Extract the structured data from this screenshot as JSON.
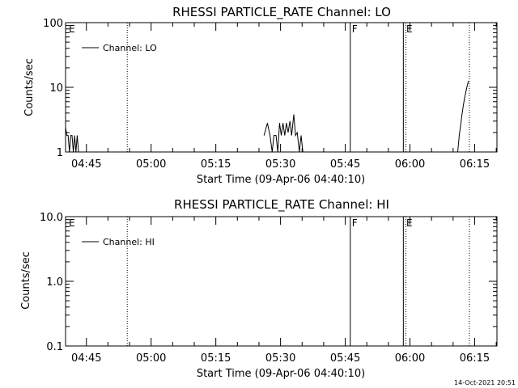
{
  "footer": {
    "timestamp": "14-Oct-2021 20:51"
  },
  "chart_data": [
    {
      "type": "line",
      "title": "RHESSI PARTICLE_RATE Channel: LO",
      "xlabel": "Start Time (09-Apr-06 04:40:10)",
      "ylabel": "Counts/sec",
      "yscale": "log",
      "ylim": [
        1,
        100
      ],
      "xlim_minutes": [
        0,
        100
      ],
      "ytick_labels": [
        "1",
        "10",
        "100"
      ],
      "ytick_values": [
        1,
        10,
        100
      ],
      "xtick_labels": [
        "04:45",
        "05:00",
        "05:15",
        "05:30",
        "05:45",
        "06:00",
        "06:15"
      ],
      "xtick_minutes": [
        4.833,
        19.833,
        34.833,
        49.833,
        64.833,
        79.833,
        94.833
      ],
      "grid": false,
      "legend": {
        "position": "top-left",
        "entries": [
          "Channel: LO"
        ]
      },
      "annotations": [
        {
          "text": "E",
          "x_minutes": 0.4
        },
        {
          "text": "F",
          "x_minutes": 66.0
        },
        {
          "text": "E",
          "x_minutes": 78.6
        }
      ],
      "vertical_lines": [
        {
          "x_minutes": 14.3,
          "style": "dotted"
        },
        {
          "x_minutes": 66.0,
          "style": "solid"
        },
        {
          "x_minutes": 78.3,
          "style": "solid"
        },
        {
          "x_minutes": 78.9,
          "style": "dotted"
        },
        {
          "x_minutes": 93.6,
          "style": "dotted"
        }
      ],
      "series": [
        {
          "name": "Channel: LO",
          "segments": [
            {
              "x": [
                0.0,
                0.3,
                0.6,
                0.9,
                1.2,
                1.5,
                1.8,
                2.1,
                2.4,
                2.7,
                3.0
              ],
              "y": [
                2.4,
                1.8,
                1.8,
                1.0,
                1.8,
                1.8,
                1.0,
                1.8,
                1.0,
                1.8,
                1.0
              ]
            },
            {
              "x": [
                46.0,
                46.8,
                47.4,
                47.9,
                48.3,
                48.8,
                49.2,
                49.6,
                50.0,
                50.4,
                50.8,
                51.2,
                51.6,
                52.0,
                52.4,
                52.9,
                53.3,
                53.7,
                54.2,
                54.6,
                55.0
              ],
              "y": [
                1.8,
                2.8,
                1.8,
                1.0,
                1.8,
                1.8,
                1.0,
                2.8,
                1.8,
                2.8,
                1.8,
                2.8,
                2.0,
                3.0,
                1.8,
                3.8,
                1.8,
                2.0,
                1.0,
                1.8,
                1.0
              ]
            },
            {
              "x": [
                90.9,
                91.3,
                91.6,
                91.9,
                92.2,
                92.5,
                92.8,
                93.1,
                93.4
              ],
              "y": [
                1.0,
                1.9,
                2.6,
                3.8,
                5.2,
                6.8,
                8.5,
                10.5,
                12.5
              ]
            }
          ]
        }
      ]
    },
    {
      "type": "line",
      "title": "RHESSI PARTICLE_RATE Channel: HI",
      "xlabel": "Start Time (09-Apr-06 04:40:10)",
      "ylabel": "Counts/sec",
      "yscale": "log",
      "ylim": [
        0.1,
        10.0
      ],
      "xlim_minutes": [
        0,
        100
      ],
      "ytick_labels": [
        "0.1",
        "1.0",
        "10.0"
      ],
      "ytick_values": [
        0.1,
        1.0,
        10.0
      ],
      "xtick_labels": [
        "04:45",
        "05:00",
        "05:15",
        "05:30",
        "05:45",
        "06:00",
        "06:15"
      ],
      "xtick_minutes": [
        4.833,
        19.833,
        34.833,
        49.833,
        64.833,
        79.833,
        94.833
      ],
      "grid": false,
      "legend": {
        "position": "top-left",
        "entries": [
          "Channel: HI"
        ]
      },
      "annotations": [
        {
          "text": "E",
          "x_minutes": 0.4
        },
        {
          "text": "F",
          "x_minutes": 66.0
        },
        {
          "text": "E",
          "x_minutes": 78.6
        }
      ],
      "vertical_lines": [
        {
          "x_minutes": 14.3,
          "style": "dotted"
        },
        {
          "x_minutes": 66.0,
          "style": "solid"
        },
        {
          "x_minutes": 78.3,
          "style": "solid"
        },
        {
          "x_minutes": 78.9,
          "style": "dotted"
        },
        {
          "x_minutes": 93.6,
          "style": "dotted"
        }
      ],
      "series": [
        {
          "name": "Channel: HI",
          "segments": []
        }
      ]
    }
  ]
}
